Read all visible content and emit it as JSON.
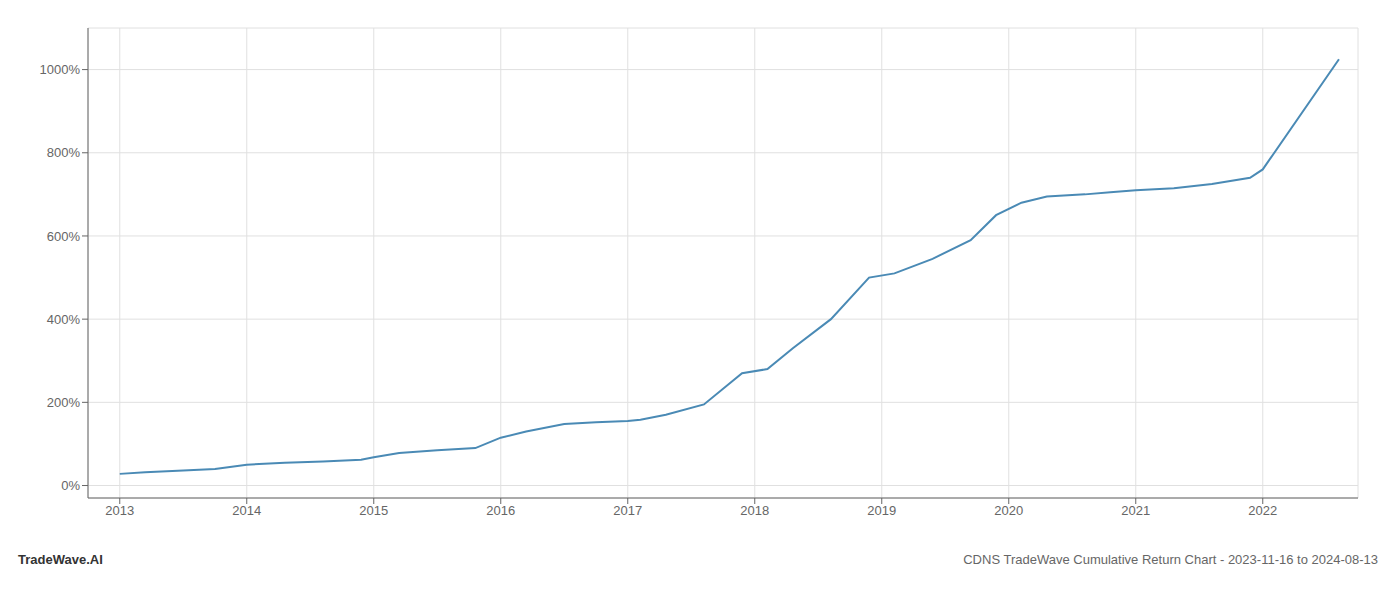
{
  "chart_data": {
    "type": "line",
    "title": "CDNS TradeWave Cumulative Return Chart - 2023-11-16 to 2024-08-13",
    "annotations": [
      "TradeWave.AI"
    ],
    "x": [
      2013.0,
      2013.2,
      2013.5,
      2013.75,
      2014.0,
      2014.3,
      2014.6,
      2014.9,
      2015.0,
      2015.2,
      2015.5,
      2015.8,
      2016.0,
      2016.2,
      2016.5,
      2016.75,
      2017.0,
      2017.1,
      2017.3,
      2017.6,
      2017.9,
      2018.1,
      2018.3,
      2018.6,
      2018.9,
      2019.1,
      2019.4,
      2019.7,
      2019.9,
      2020.1,
      2020.3,
      2020.6,
      2020.8,
      2021.0,
      2021.3,
      2021.6,
      2021.9,
      2022.0,
      2022.6
    ],
    "values": [
      28,
      32,
      36,
      40,
      50,
      55,
      58,
      62,
      68,
      78,
      85,
      90,
      115,
      130,
      148,
      152,
      155,
      158,
      170,
      195,
      270,
      280,
      330,
      400,
      500,
      510,
      545,
      590,
      650,
      680,
      695,
      700,
      705,
      710,
      715,
      725,
      740,
      760,
      1025
    ],
    "color": "#4a8ab5",
    "xlim": [
      2012.75,
      2022.75
    ],
    "ylim": [
      -30,
      1100
    ],
    "xticks": [
      2013,
      2014,
      2015,
      2016,
      2017,
      2018,
      2019,
      2020,
      2021,
      2022
    ],
    "yticks": [
      {
        "value": 0,
        "label": "0%"
      },
      {
        "value": 200,
        "label": "200%"
      },
      {
        "value": 400,
        "label": "400%"
      },
      {
        "value": 600,
        "label": "600%"
      },
      {
        "value": 800,
        "label": "800%"
      },
      {
        "value": 1000,
        "label": "1000%"
      }
    ],
    "grid": true
  }
}
